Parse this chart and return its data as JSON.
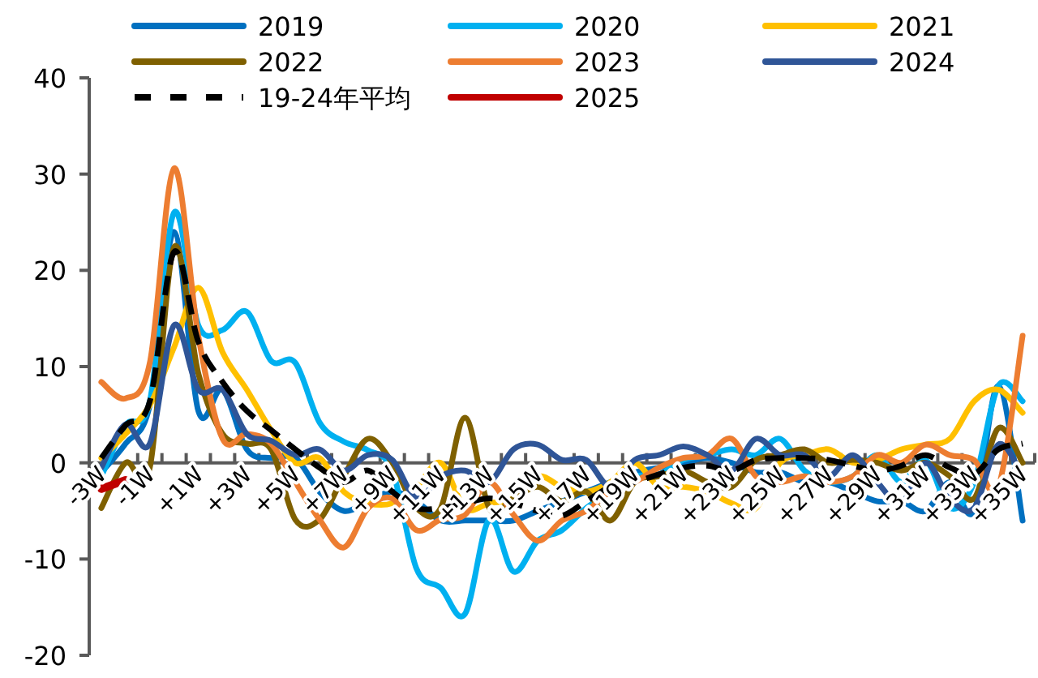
{
  "chart_data": {
    "type": "line",
    "categories": [
      "-3W",
      null,
      "-1W",
      null,
      "+1W",
      null,
      "+3W",
      null,
      "+5W",
      null,
      "+7W",
      null,
      "+9W",
      null,
      "+11W",
      null,
      "+13W",
      null,
      "+15W",
      null,
      "+17W",
      null,
      "+19W",
      null,
      "+21W",
      null,
      "+23W",
      null,
      "+25W",
      null,
      "+27W",
      null,
      "+29W",
      null,
      "+31W",
      null,
      "+33W",
      null,
      "+35W"
    ],
    "ylim": [
      -20,
      40
    ],
    "yticks": [
      -20,
      -10,
      0,
      10,
      20,
      30,
      40
    ],
    "legend": "top",
    "series": [
      {
        "name": "2019",
        "color": "#0070c0",
        "values": [
          -1,
          2,
          6,
          24,
          5.4,
          7.6,
          1.4,
          0.5,
          0.5,
          -3,
          -5,
          -4,
          -3,
          -4,
          -6,
          -6,
          -6,
          -6,
          -5,
          -4,
          -3,
          -2,
          -1,
          -0.5,
          0,
          0.5,
          0,
          -1,
          -1,
          -2,
          -2,
          -3,
          -4,
          -4,
          -5,
          -2,
          -5,
          8,
          -6
        ]
      },
      {
        "name": "2020",
        "color": "#00b0f0",
        "values": [
          -1.4,
          3.9,
          6.4,
          26,
          14.3,
          13.8,
          15.7,
          10.6,
          10.4,
          4.2,
          2.2,
          1.3,
          -0.8,
          -11,
          -13,
          -15.7,
          -5.9,
          -11.3,
          -8.1,
          -7,
          -4.7,
          -3,
          -1.4,
          -1.2,
          0.3,
          0.8,
          1.4,
          0.8,
          2.5,
          -0.8,
          -2,
          -1.4,
          0.8,
          -2,
          0.3,
          -4.7,
          -2,
          8,
          6.4
        ]
      },
      {
        "name": "2021",
        "color": "#ffc000",
        "values": [
          0.5,
          3,
          6,
          12,
          18.2,
          11.5,
          7.6,
          3.4,
          0,
          0.5,
          -3,
          -4.2,
          -4.2,
          -2.5,
          0,
          -4.7,
          -4.2,
          -3.7,
          -1.4,
          -2.5,
          -3,
          -2,
          0,
          -2.5,
          -2.5,
          -3,
          -4.2,
          -4.7,
          0,
          0.8,
          1.4,
          0,
          0.3,
          1.4,
          1.9,
          2.5,
          6.4,
          7.6,
          5.2
        ]
      },
      {
        "name": "2022",
        "color": "#7f6000",
        "values": [
          -4.7,
          0,
          -0.5,
          22.4,
          9.3,
          3,
          2,
          1.4,
          -5.9,
          -5.9,
          -1.4,
          2.5,
          0,
          -4.7,
          -4.7,
          4.7,
          -4.7,
          -3.7,
          -2.5,
          -4,
          -3,
          -6,
          -2,
          -1.4,
          -0.8,
          -2,
          -2.5,
          0.3,
          0.8,
          1.4,
          0,
          0.3,
          0,
          -0.8,
          0,
          -1.4,
          -3.7,
          3.6,
          0
        ]
      },
      {
        "name": "2023",
        "color": "#ed7d31",
        "values": [
          8.4,
          6.7,
          10.4,
          30.6,
          13.2,
          2.5,
          3,
          2,
          -2,
          -5.9,
          -8.8,
          -4.7,
          -3.7,
          -7,
          -5.9,
          -5.4,
          -2,
          -5.4,
          -8.1,
          -6,
          -5,
          -3,
          -2,
          -0.5,
          0.5,
          0.8,
          2.5,
          -1.4,
          -2,
          -1.4,
          -2,
          -1.4,
          0.8,
          0,
          1.9,
          0.8,
          0.3,
          -2.5,
          13.2
        ]
      },
      {
        "name": "2024",
        "color": "#2f5597",
        "values": [
          -0.5,
          4,
          2,
          14.3,
          7.6,
          7.6,
          3,
          2.3,
          0.8,
          1.4,
          -0.8,
          0.8,
          0.3,
          -3.7,
          -1.4,
          -0.8,
          -2,
          1.4,
          1.9,
          0.3,
          0.3,
          -2.5,
          0.3,
          0.8,
          1.7,
          0.8,
          -0.8,
          2.5,
          0.8,
          0.8,
          -1.4,
          0.8,
          -2,
          -4.2,
          0,
          -3.7,
          -4.7,
          1.9,
          -1.4
        ]
      },
      {
        "name": "19-24年平均",
        "color": "#000000",
        "line_style": "dashed",
        "values": [
          0.5,
          3.9,
          6.4,
          21.9,
          12.6,
          8.4,
          5.4,
          3.4,
          1.4,
          -0.5,
          -2,
          -0.8,
          -3,
          -4.7,
          -4.7,
          -4.2,
          -3.7,
          -4.2,
          -5,
          -5.5,
          -4,
          -2.5,
          -2,
          -1.2,
          -0.5,
          -0.3,
          -0.8,
          0.3,
          0.5,
          0.5,
          0.3,
          -0.3,
          -0.8,
          -0.3,
          0.8,
          -0.5,
          -1.2,
          1.4,
          2
        ]
      },
      {
        "name": "2025",
        "color": "#c00000",
        "values": [
          -2.7,
          -1.8,
          null,
          null,
          null,
          null,
          null,
          null,
          null,
          null,
          null,
          null,
          null,
          null,
          null,
          null,
          null,
          null,
          null,
          null,
          null,
          null,
          null,
          null,
          null,
          null,
          null,
          null,
          null,
          null,
          null,
          null,
          null,
          null,
          null,
          null,
          null,
          null,
          null
        ]
      }
    ]
  }
}
